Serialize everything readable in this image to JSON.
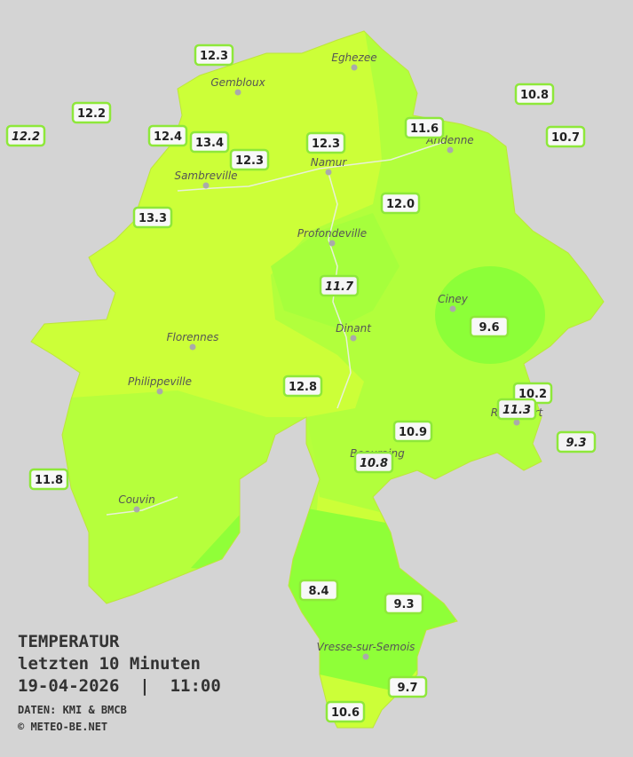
{
  "legend": {
    "title": "TEMPERATUR",
    "subtitle": "letzten 10 Minuten",
    "datetime": "19-04-2026  |  11:00",
    "source": "DATEN: KMI & BMCB",
    "copyright": "© METEO-BE.NET"
  },
  "cities": [
    "Eghezee",
    "Gembloux",
    "Andenne",
    "Namur",
    "Sambreville",
    "Profondeville",
    "Ciney",
    "Dinant",
    "Florennes",
    "Philippeville",
    "Rochefort",
    "Beauraing",
    "Couvin",
    "Vresse-sur-Semois"
  ],
  "stations": [
    {
      "label": "12.3",
      "italic": false
    },
    {
      "label": "12.2",
      "italic": false
    },
    {
      "label": "12.2",
      "italic": true
    },
    {
      "label": "12.4",
      "italic": false
    },
    {
      "label": "13.4",
      "italic": false
    },
    {
      "label": "12.3",
      "italic": false
    },
    {
      "label": "12.3",
      "italic": false
    },
    {
      "label": "11.6",
      "italic": false
    },
    {
      "label": "10.8",
      "italic": false
    },
    {
      "label": "10.7",
      "italic": false
    },
    {
      "label": "13.3",
      "italic": false
    },
    {
      "label": "12.0",
      "italic": false
    },
    {
      "label": "11.7",
      "italic": true
    },
    {
      "label": "9.6",
      "italic": false
    },
    {
      "label": "12.8",
      "italic": false
    },
    {
      "label": "10.2",
      "italic": false
    },
    {
      "label": "11.3",
      "italic": true
    },
    {
      "label": "9.3",
      "italic": true
    },
    {
      "label": "10.9",
      "italic": false
    },
    {
      "label": "10.8",
      "italic": true
    },
    {
      "label": "11.8",
      "italic": false
    },
    {
      "label": "8.4",
      "italic": false
    },
    {
      "label": "9.3",
      "italic": false
    },
    {
      "label": "9.7",
      "italic": false
    },
    {
      "label": "10.6",
      "italic": false
    }
  ]
}
